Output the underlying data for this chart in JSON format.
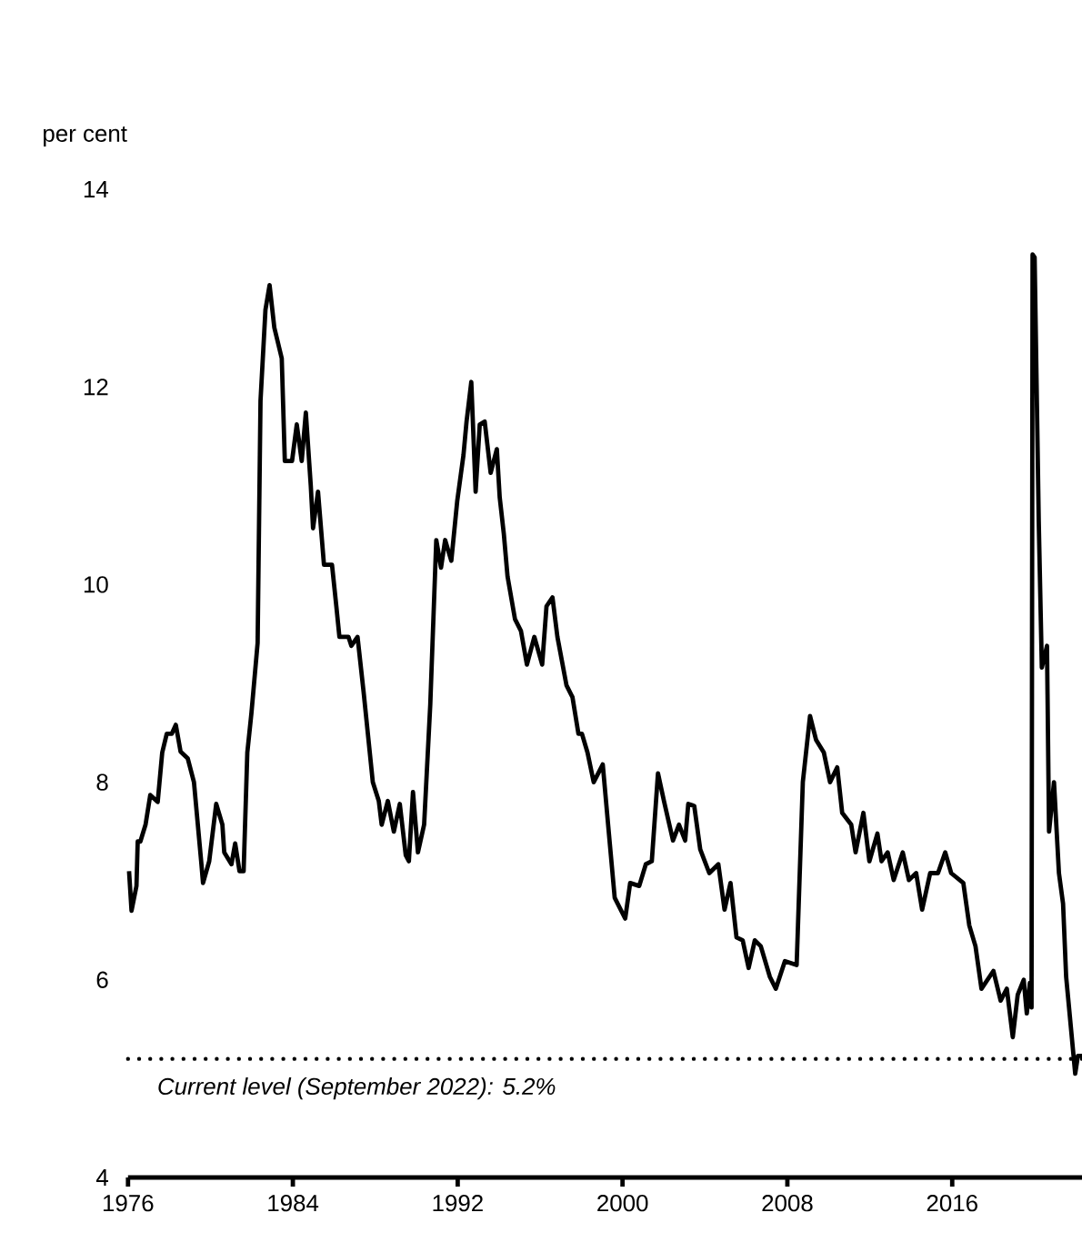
{
  "chart_data": {
    "type": "line",
    "ylabel": "per cent",
    "xlim": [
      1976,
      2022.3
    ],
    "xticks": [
      1976,
      1984,
      1992,
      2000,
      2008,
      2016
    ],
    "ylim": [
      4,
      14
    ],
    "yticks": [
      4,
      6,
      8,
      10,
      12,
      14
    ],
    "grid": false,
    "marker": "none",
    "line_style": "solid",
    "ref_lines": [
      {
        "axis": "y",
        "value": 5.2,
        "label": "Current level (September 2022): 5.2%",
        "color": "#000000",
        "line_style": "dotted"
      }
    ],
    "series": [
      {
        "color": "#000000",
        "x": [
          1976.05,
          1976.17,
          1976.41,
          1976.47,
          1976.6,
          1976.85,
          1977.08,
          1977.44,
          1977.66,
          1977.88,
          1978.12,
          1978.32,
          1978.55,
          1978.9,
          1979.2,
          1979.55,
          1979.64,
          1979.94,
          1980.28,
          1980.58,
          1980.67,
          1981.02,
          1981.2,
          1981.41,
          1981.61,
          1981.79,
          1981.99,
          1982.29,
          1982.43,
          1982.67,
          1982.87,
          1983.1,
          1983.46,
          1983.61,
          1983.96,
          1984.19,
          1984.43,
          1984.63,
          1984.87,
          1984.98,
          1985.22,
          1985.51,
          1985.9,
          1986.11,
          1986.26,
          1986.7,
          1986.84,
          1987.14,
          1987.43,
          1987.88,
          1988.17,
          1988.31,
          1988.61,
          1988.9,
          1989.19,
          1989.48,
          1989.63,
          1989.83,
          1990.07,
          1990.37,
          1990.67,
          1990.96,
          1991.19,
          1991.39,
          1991.69,
          1991.98,
          1992.28,
          1992.43,
          1992.66,
          1992.87,
          1993.07,
          1993.31,
          1993.6,
          1993.9,
          1994.04,
          1994.24,
          1994.42,
          1994.78,
          1995.07,
          1995.36,
          1995.72,
          1996.1,
          1996.31,
          1996.6,
          1996.84,
          1997.28,
          1997.57,
          1997.86,
          1998.03,
          1998.3,
          1998.6,
          1999.04,
          1999.33,
          1999.62,
          2000.13,
          2000.37,
          2000.81,
          2001.13,
          2001.42,
          2001.72,
          2002.01,
          2002.45,
          2002.74,
          2003.04,
          2003.19,
          2003.48,
          2003.77,
          2004.21,
          2004.65,
          2004.95,
          2005.24,
          2005.53,
          2005.83,
          2006.12,
          2006.42,
          2006.71,
          2007.15,
          2007.44,
          2007.88,
          2008.45,
          2008.75,
          2009.1,
          2009.39,
          2009.77,
          2010.07,
          2010.42,
          2010.66,
          2011.1,
          2011.31,
          2011.69,
          2011.98,
          2012.37,
          2012.57,
          2012.87,
          2013.16,
          2013.6,
          2013.9,
          2014.25,
          2014.54,
          2014.93,
          2015.31,
          2015.66,
          2015.95,
          2016.54,
          2016.83,
          2017.13,
          2017.42,
          2018.0,
          2018.35,
          2018.65,
          2018.94,
          2019.18,
          2019.47,
          2019.62,
          2019.77,
          2019.85,
          2019.9,
          2020.0,
          2020.2,
          2020.35,
          2020.6,
          2020.7,
          2020.94,
          2021.18,
          2021.38,
          2021.53,
          2021.67,
          2021.97,
          2022.1,
          2022.3
        ],
        "values": [
          7.1,
          6.7,
          6.95,
          7.4,
          7.4,
          7.57,
          7.87,
          7.8,
          8.3,
          8.49,
          8.49,
          8.58,
          8.31,
          8.24,
          8.0,
          7.2,
          6.98,
          7.2,
          7.78,
          7.57,
          7.29,
          7.17,
          7.38,
          7.1,
          7.1,
          8.3,
          8.7,
          9.41,
          11.86,
          12.78,
          13.03,
          12.6,
          12.29,
          11.25,
          11.25,
          11.62,
          11.25,
          11.74,
          11.0,
          10.57,
          10.94,
          10.2,
          10.2,
          9.78,
          9.47,
          9.47,
          9.38,
          9.47,
          8.92,
          8.0,
          7.81,
          7.57,
          7.81,
          7.5,
          7.78,
          7.26,
          7.2,
          7.9,
          7.29,
          7.57,
          8.79,
          10.45,
          10.17,
          10.45,
          10.24,
          10.85,
          11.31,
          11.65,
          12.05,
          10.94,
          11.62,
          11.65,
          11.13,
          11.37,
          10.88,
          10.51,
          10.08,
          9.65,
          9.53,
          9.19,
          9.47,
          9.19,
          9.78,
          9.87,
          9.47,
          8.98,
          8.86,
          8.49,
          8.49,
          8.3,
          8.0,
          8.18,
          7.5,
          6.83,
          6.62,
          6.98,
          6.95,
          7.17,
          7.2,
          8.09,
          7.81,
          7.41,
          7.57,
          7.41,
          7.78,
          7.76,
          7.32,
          7.08,
          7.17,
          6.71,
          6.98,
          6.43,
          6.4,
          6.12,
          6.4,
          6.34,
          6.03,
          5.91,
          6.19,
          6.15,
          8.0,
          8.67,
          8.43,
          8.3,
          8.0,
          8.15,
          7.69,
          7.57,
          7.29,
          7.69,
          7.2,
          7.48,
          7.2,
          7.29,
          7.01,
          7.29,
          7.01,
          7.08,
          6.71,
          7.08,
          7.08,
          7.29,
          7.08,
          6.98,
          6.55,
          6.34,
          5.91,
          6.09,
          5.79,
          5.91,
          5.42,
          5.85,
          6.0,
          5.66,
          5.97,
          5.72,
          13.34,
          13.31,
          10.64,
          9.16,
          9.38,
          7.5,
          8.0,
          7.08,
          6.77,
          6.03,
          5.72,
          5.05,
          5.23,
          5.23
        ]
      }
    ]
  }
}
